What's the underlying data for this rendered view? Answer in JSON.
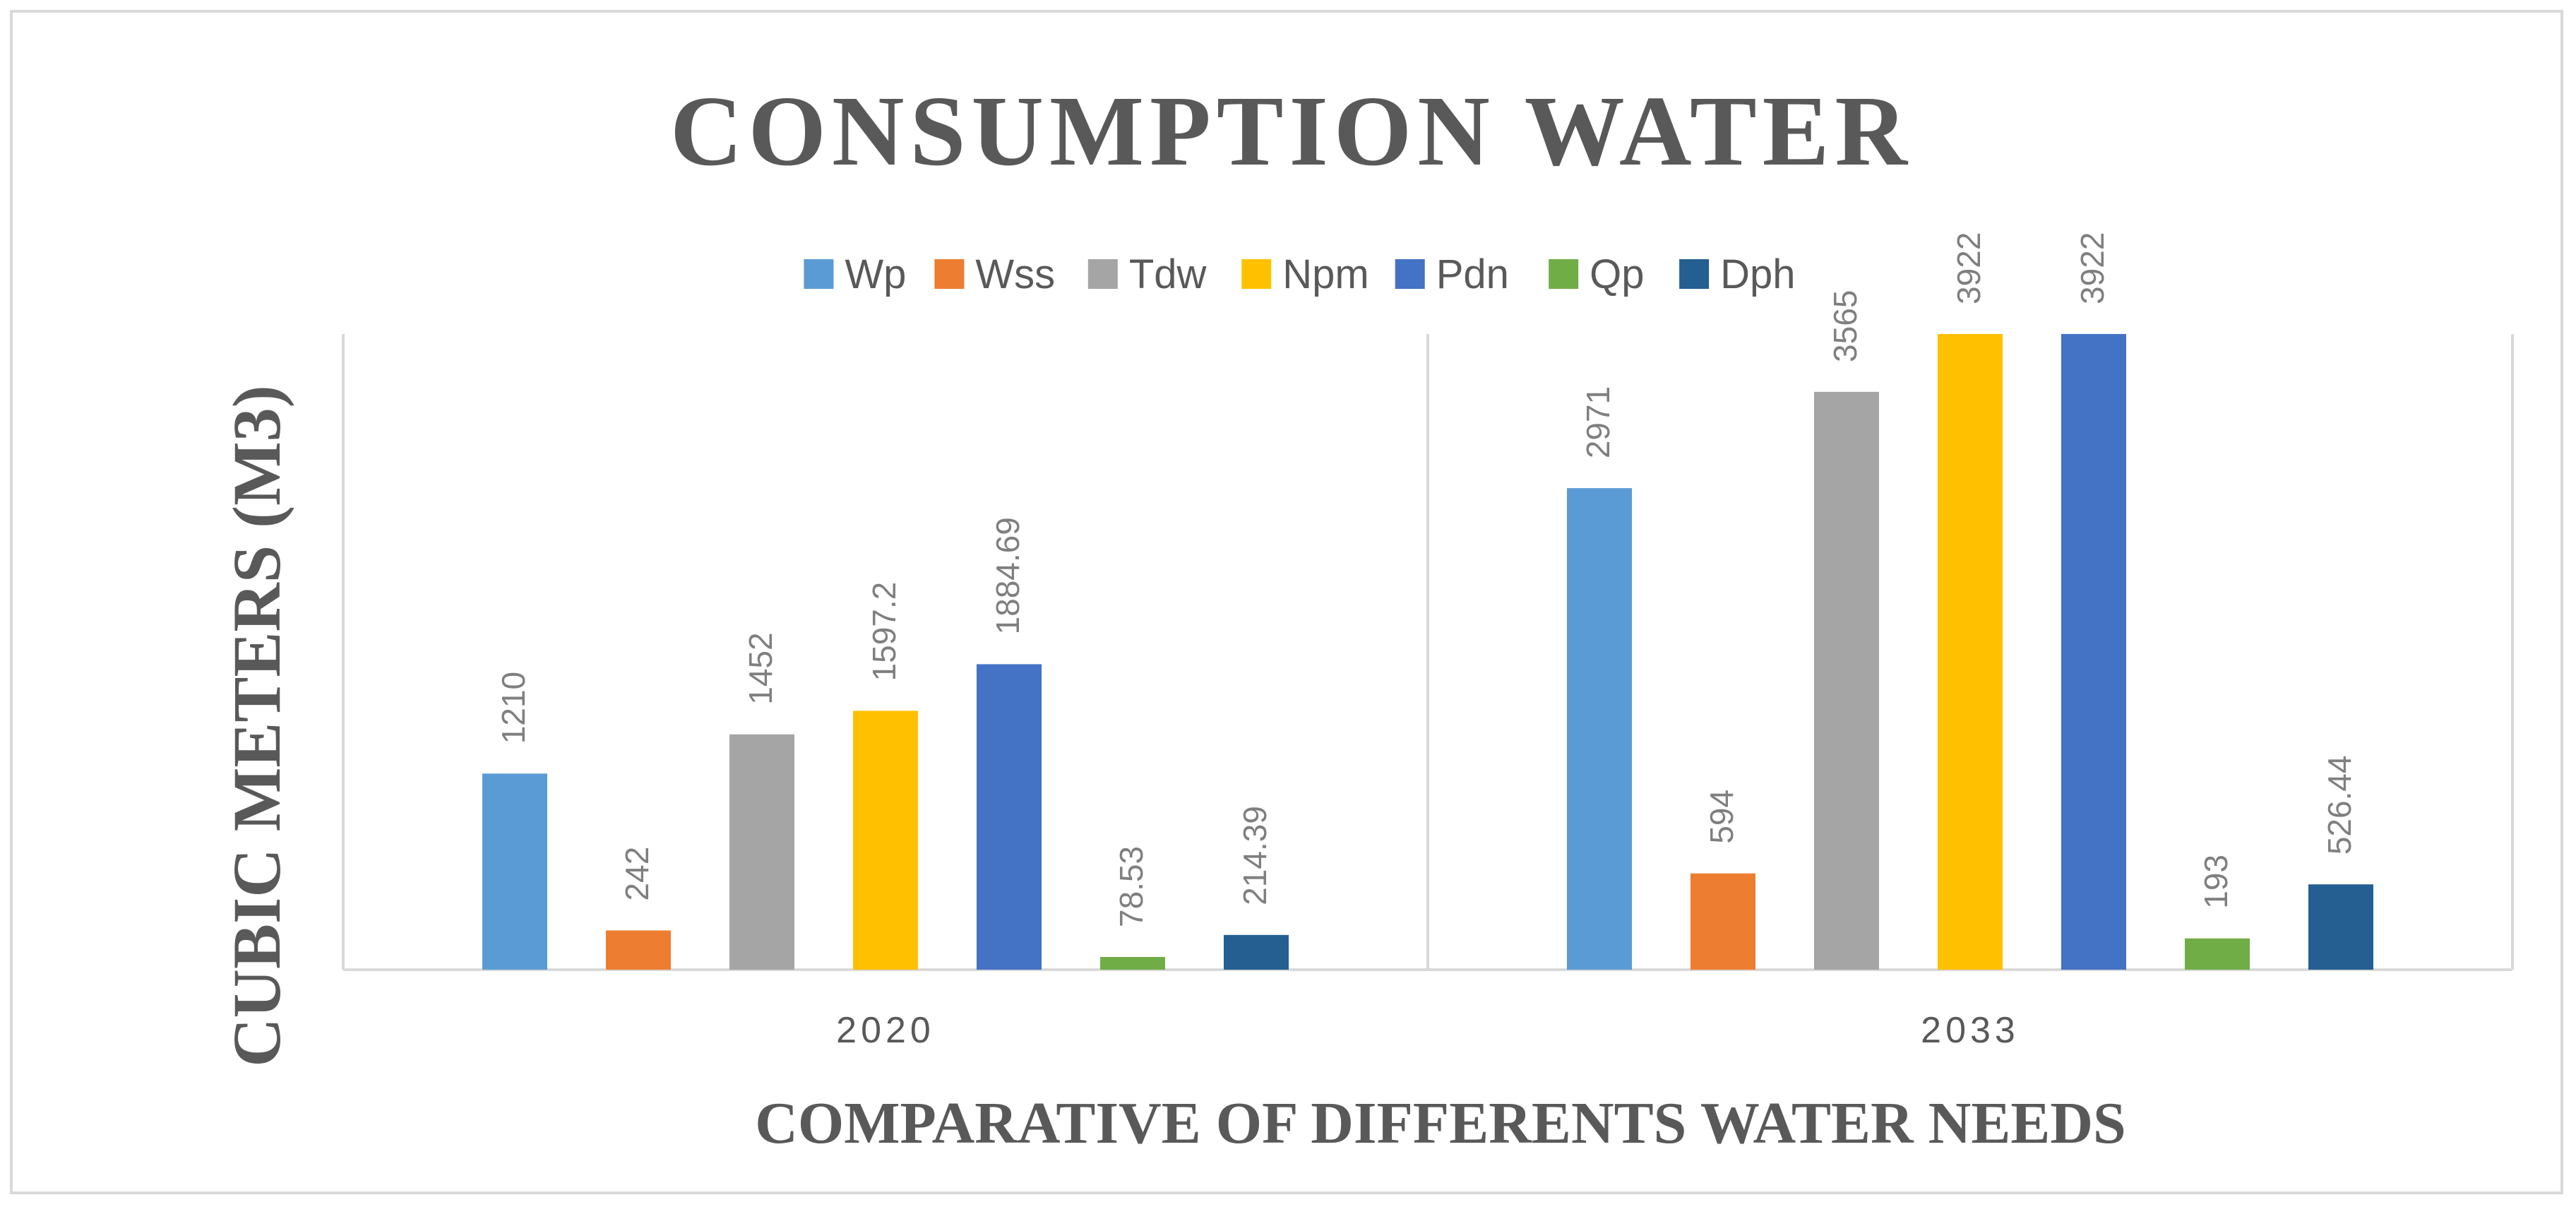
{
  "chart_data": {
    "type": "bar",
    "title": "CONSUMPTION WATER",
    "xlabel": "COMPARATIVE OF DIFFERENTS WATER NEEDS",
    "ylabel": "CUBIC METERS (M3)",
    "categories": [
      "2020",
      "2033"
    ],
    "series": [
      {
        "name": "Wp",
        "color": "#5B9BD5",
        "values": [
          1210,
          2971
        ],
        "labels": [
          "1210",
          "2971"
        ]
      },
      {
        "name": "Wss",
        "color": "#ED7D31",
        "values": [
          242,
          594
        ],
        "labels": [
          "242",
          "594"
        ]
      },
      {
        "name": "Tdw",
        "color": "#A5A5A5",
        "values": [
          1452,
          3565
        ],
        "labels": [
          "1452",
          "3565"
        ]
      },
      {
        "name": "Npm",
        "color": "#FFC000",
        "values": [
          1597.2,
          3922
        ],
        "labels": [
          "1597.2",
          "3922"
        ]
      },
      {
        "name": "Pdn",
        "color": "#4472C4",
        "values": [
          1884.69,
          3922
        ],
        "labels": [
          "1884.69",
          "3922"
        ]
      },
      {
        "name": "Qp",
        "color": "#70AD47",
        "values": [
          78.53,
          193
        ],
        "labels": [
          "78.53",
          "193"
        ]
      },
      {
        "name": "Dph",
        "color": "#255E91",
        "values": [
          214.39,
          526.44
        ],
        "labels": [
          "214.39",
          "526.44"
        ]
      }
    ],
    "ylim": [
      0,
      5000
    ],
    "grid": false,
    "legend": "top-center"
  }
}
